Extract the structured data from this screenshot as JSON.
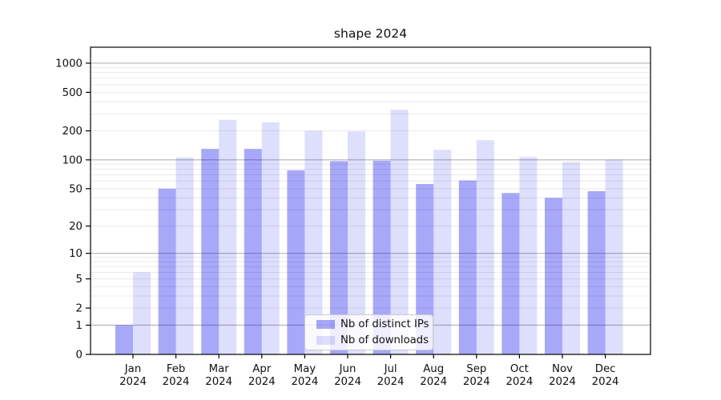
{
  "chart_data": {
    "type": "bar",
    "title": "shape 2024",
    "categories": [
      "Jan 2024",
      "Feb 2024",
      "Mar 2024",
      "Apr 2024",
      "May 2024",
      "Jun 2024",
      "Jul 2024",
      "Aug 2024",
      "Sep 2024",
      "Oct 2024",
      "Nov 2024",
      "Dec 2024"
    ],
    "series": [
      {
        "name": "Nb of distinct IPs",
        "color": "#a8a8f9",
        "fill": "rgba(0,0,238,0.34)",
        "values": [
          1,
          50,
          130,
          130,
          78,
          97,
          98,
          56,
          61,
          45,
          40,
          47
        ]
      },
      {
        "name": "Nb of downloads",
        "color": "#dededd",
        "fill": "rgba(0,0,238,0.13)",
        "values": [
          6,
          106,
          260,
          245,
          200,
          197,
          330,
          127,
          160,
          107,
          95,
          100
        ]
      }
    ],
    "yscale": "log1p",
    "yticks": [
      0,
      1,
      2,
      5,
      10,
      20,
      50,
      100,
      200,
      500,
      1000
    ],
    "ylim": [
      0,
      1465
    ],
    "grid": "major gray lines at 1/10/100/1000, faint minor log lines",
    "legend_position": "inside lower center",
    "colors": {
      "grid_major": "#b2b2b2",
      "grid_minor": "#e9e9e9",
      "axis": "#000000",
      "background": "#ffffff"
    }
  }
}
